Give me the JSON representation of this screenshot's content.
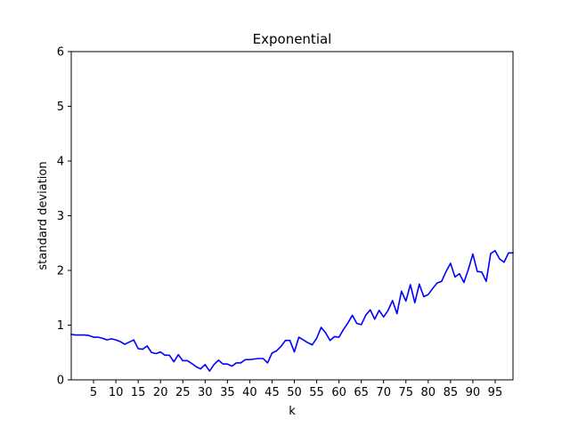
{
  "chart_data": {
    "type": "line",
    "title": "Exponential",
    "xlabel": "k",
    "ylabel": "standard deviation",
    "xlim": [
      0,
      99
    ],
    "ylim": [
      0,
      6
    ],
    "xticks": [
      5,
      10,
      15,
      20,
      25,
      30,
      35,
      40,
      45,
      50,
      55,
      60,
      65,
      70,
      75,
      80,
      85,
      90,
      95
    ],
    "yticks": [
      0,
      1,
      2,
      3,
      4,
      5,
      6
    ],
    "grid": false,
    "series": [
      {
        "color": "#0000ff",
        "x": [
          0,
          1,
          2,
          3,
          4,
          5,
          6,
          7,
          8,
          9,
          10,
          11,
          12,
          13,
          14,
          15,
          16,
          17,
          18,
          19,
          20,
          21,
          22,
          23,
          24,
          25,
          26,
          27,
          28,
          29,
          30,
          31,
          32,
          33,
          34,
          35,
          36,
          37,
          38,
          39,
          40,
          41,
          42,
          43,
          44,
          45,
          46,
          47,
          48,
          49,
          50,
          51,
          52,
          53,
          54,
          55,
          56,
          57,
          58,
          59,
          60,
          61,
          62,
          63,
          64,
          65,
          66,
          67,
          68,
          69,
          70,
          71,
          72,
          73,
          74,
          75,
          76,
          77,
          78,
          79,
          80,
          81,
          82,
          83,
          84,
          85,
          86,
          87,
          88,
          89,
          90,
          91,
          92,
          93,
          94,
          95,
          96,
          97,
          98,
          99
        ],
        "y": [
          0.83,
          0.82,
          0.82,
          0.82,
          0.81,
          0.78,
          0.78,
          0.76,
          0.73,
          0.75,
          0.73,
          0.7,
          0.65,
          0.69,
          0.73,
          0.57,
          0.56,
          0.62,
          0.5,
          0.48,
          0.51,
          0.45,
          0.45,
          0.33,
          0.46,
          0.35,
          0.35,
          0.3,
          0.24,
          0.2,
          0.28,
          0.16,
          0.28,
          0.36,
          0.29,
          0.29,
          0.25,
          0.31,
          0.31,
          0.37,
          0.37,
          0.38,
          0.39,
          0.39,
          0.31,
          0.49,
          0.53,
          0.61,
          0.72,
          0.72,
          0.51,
          0.78,
          0.73,
          0.68,
          0.64,
          0.76,
          0.96,
          0.86,
          0.72,
          0.79,
          0.78,
          0.92,
          1.04,
          1.18,
          1.03,
          1.01,
          1.18,
          1.28,
          1.11,
          1.27,
          1.15,
          1.27,
          1.45,
          1.21,
          1.62,
          1.44,
          1.74,
          1.41,
          1.75,
          1.52,
          1.56,
          1.67,
          1.77,
          1.8,
          1.98,
          2.13,
          1.88,
          1.94,
          1.78,
          2.02,
          2.3,
          1.98,
          1.97,
          1.8,
          2.31,
          2.36,
          2.21,
          2.15,
          2.32,
          2.32
        ]
      }
    ]
  }
}
